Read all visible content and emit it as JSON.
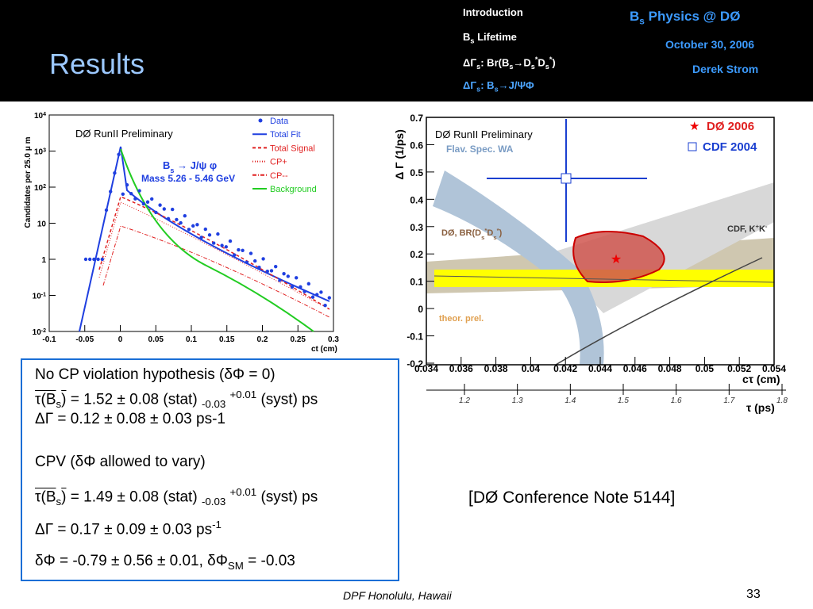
{
  "header": {
    "title": "Results",
    "nav": [
      "Introduction",
      [
        {
          "t": "B"
        },
        {
          "sub": "s"
        },
        {
          "t": " Lifetime"
        }
      ],
      [
        {
          "t": "ΔΓ"
        },
        {
          "sub": "s"
        },
        {
          "t": ": Br(B"
        },
        {
          "sub": "s"
        },
        {
          "t": "→D"
        },
        {
          "sub": "s"
        },
        {
          "sup": "*"
        },
        {
          "t": "D"
        },
        {
          "sub": "s"
        },
        {
          "sup": "*"
        },
        {
          "t": ")"
        }
      ],
      [
        {
          "t": "ΔΓ"
        },
        {
          "sub": "s"
        },
        {
          "t": ": B"
        },
        {
          "sub": "s"
        },
        {
          "t": "→J/ΨΦ"
        }
      ]
    ],
    "talk": [
      {
        "t": "B"
      },
      {
        "sub": "s"
      },
      {
        "t": " Physics @ DØ"
      }
    ],
    "date": "October 30, 2006",
    "author": "Derek Strom"
  },
  "left_plot": {
    "ylabel": "Candidates per 25.0 μ m",
    "xlabel": "ct  (cm)",
    "xticks": [
      "-0.1",
      "-0.05",
      "0",
      "0.05",
      "0.1",
      "0.15",
      "0.2",
      "0.25",
      "0.3"
    ],
    "yticks": [
      [
        {
          "t": "10"
        },
        {
          "sup": "-2"
        }
      ],
      [
        {
          "t": "10"
        },
        {
          "sup": "-1"
        }
      ],
      "1",
      "10",
      [
        {
          "t": "10"
        },
        {
          "sup": "2"
        }
      ],
      [
        {
          "t": "10"
        },
        {
          "sup": "3"
        }
      ],
      [
        {
          "t": "10"
        },
        {
          "sup": "4"
        }
      ]
    ],
    "legend": [
      {
        "name": "Data",
        "color": "#1f3fe0"
      },
      {
        "name": "Total Fit",
        "color": "#1f3fe0"
      },
      {
        "name": "Total Signal",
        "color": "#e02020"
      },
      {
        "name": "CP+",
        "color": "#e02020"
      },
      {
        "name": "CP--",
        "color": "#e02020"
      },
      {
        "name": "Background",
        "color": "#22cc22"
      }
    ],
    "annotation": [
      {
        "t": "B"
      },
      {
        "sub": "s"
      },
      {
        "t": " → J/ψ φ"
      }
    ],
    "mass": "Mass 5.26 - 5.46 GeV",
    "prelim": "DØ RunII Preliminary"
  },
  "right_plot": {
    "ylabel": "Δ Γ (1/ps)",
    "xlabel": "cτ (cm)",
    "x2label": "τ (ps)",
    "yticks": [
      "0.7",
      "0.6",
      "0.5",
      "0.4",
      "0.3",
      "0.2",
      "0.1",
      "0",
      "-0.1",
      "-0.2"
    ],
    "xticks": [
      "0.034",
      "0.036",
      "0.038",
      "0.04",
      "0.042",
      "0.044",
      "0.046",
      "0.048",
      "0.05",
      "0.052",
      "0.054"
    ],
    "x2ticks": [
      "1.2",
      "1.3",
      "1.4",
      "1.5",
      "1.6",
      "1.7",
      "1.8"
    ],
    "legend": [
      "DØ 2006",
      "CDF 2004"
    ],
    "flav": "Flav. Spec. WA",
    "br": [
      {
        "t": "DØ, BR(D"
      },
      {
        "sub": "s"
      },
      {
        "sup": "*"
      },
      {
        "t": "D"
      },
      {
        "sub": "s"
      },
      {
        "sup": "*"
      },
      {
        "t": ")"
      }
    ],
    "theor": "theor. prel.",
    "cdf": [
      {
        "t": "CDF, K"
      },
      {
        "sup": "+"
      },
      {
        "t": "K"
      },
      {
        "sup": "-"
      }
    ],
    "prelim": "DØ RunII Preliminary"
  },
  "box": {
    "lines": [
      "No CP violation hypothesis (δΦ = 0)",
      [
        {
          "bar": "τ(B"
        },
        {
          "sub": "s"
        },
        {
          "bar": ")"
        },
        {
          "t": " = 1.52 ± 0.08 (stat) "
        },
        {
          "sub": "-0.03"
        },
        {
          "t": " "
        },
        {
          "sup": "+0.01"
        },
        {
          "t": " (syst) ps"
        }
      ],
      "ΔΓ = 0.12 ± 0.08 ± 0.03 ps-1",
      "CPV (δΦ allowed to vary)",
      [
        {
          "bar": "τ(B"
        },
        {
          "sub": "s"
        },
        {
          "bar": ")"
        },
        {
          "t": " = 1.49 ± 0.08 (stat) "
        },
        {
          "sub": "-0.03"
        },
        {
          "t": " "
        },
        {
          "sup": "+0.01"
        },
        {
          "t": " (syst) ps"
        }
      ],
      [
        {
          "t": "ΔΓ = 0.17 ± 0.09 ± 0.03 ps"
        },
        {
          "sup": "-1"
        }
      ],
      [
        {
          "t": "δΦ = -0.79 ± 0.56 ± 0.01, δΦ"
        },
        {
          "sub": "SM"
        },
        {
          "t": " = -0.03"
        }
      ]
    ]
  },
  "citation": "[DØ Conference Note 5144]",
  "footer": {
    "venue": "DPF Honolulu, Hawaii",
    "page": "33"
  }
}
